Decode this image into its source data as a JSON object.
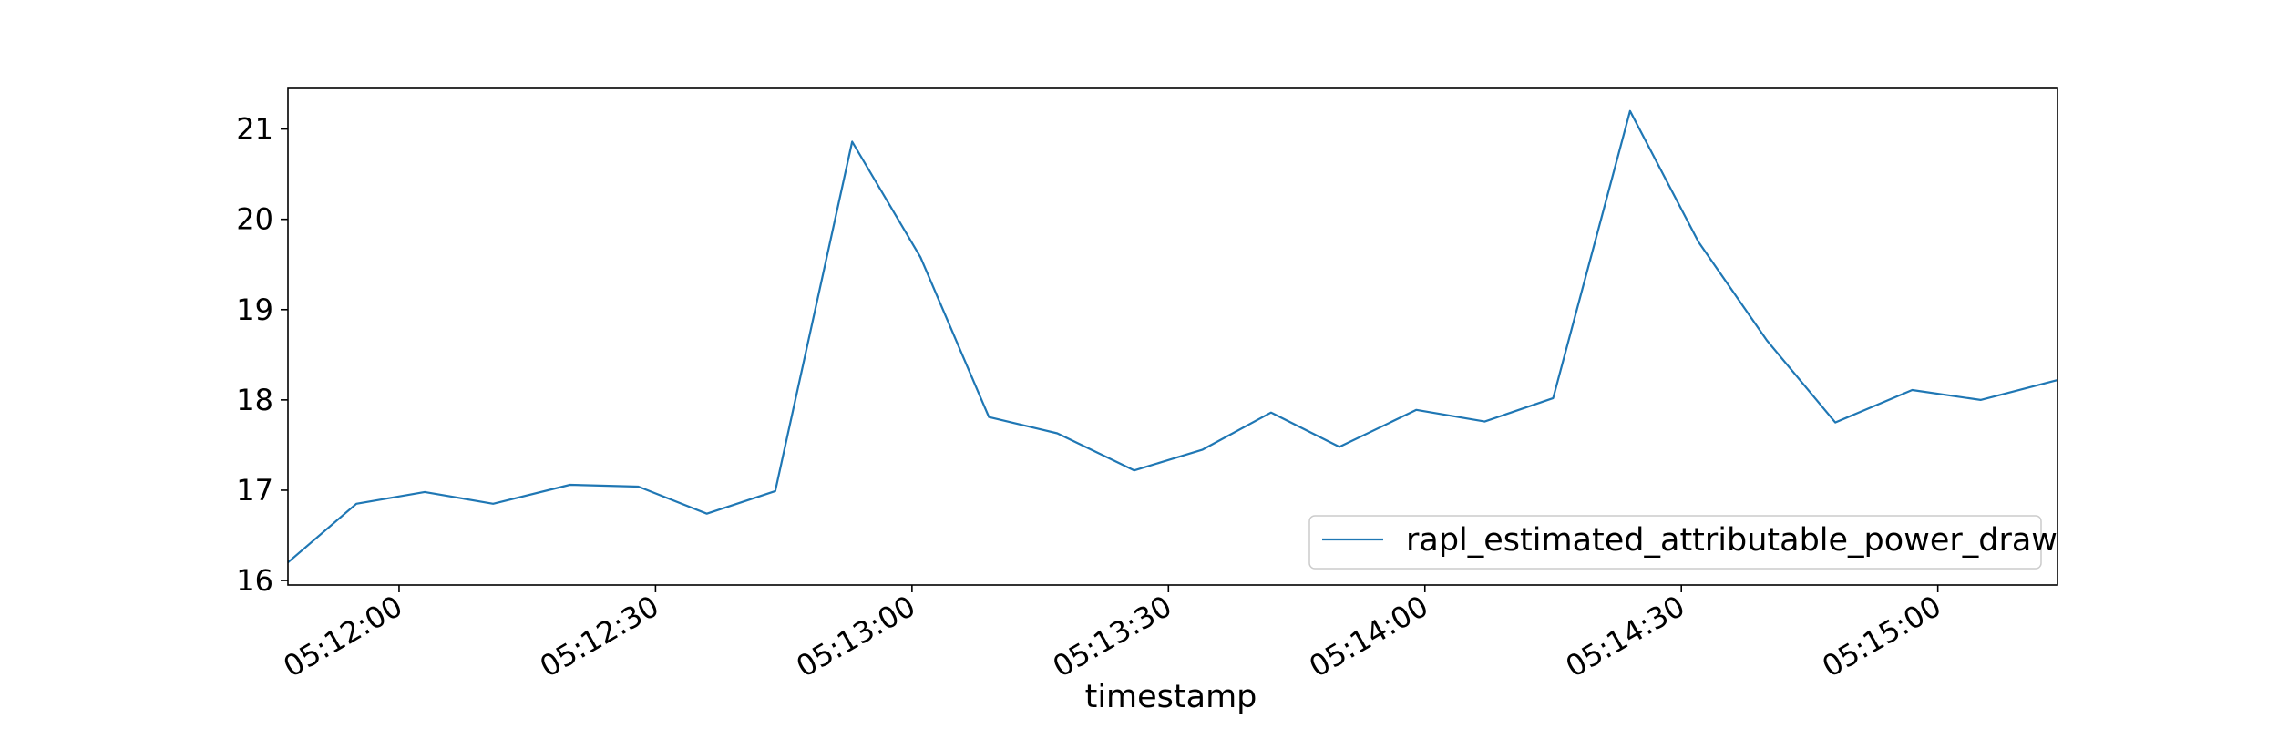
{
  "chart_data": {
    "type": "line",
    "xlabel": "timestamp",
    "ylabel": "",
    "x_ticks": [
      "05:12:00",
      "05:12:30",
      "05:13:00",
      "05:13:30",
      "05:14:00",
      "05:14:30",
      "05:15:00"
    ],
    "y_ticks": [
      "16",
      "17",
      "18",
      "19",
      "20",
      "21"
    ],
    "xlim": [
      "05:11:47",
      "05:15:14"
    ],
    "ylim": [
      15.95,
      21.45
    ],
    "grid": false,
    "legend_position": "lower-right",
    "series": [
      {
        "name": "rapl_estimated_attributable_power_draw",
        "color": "#1f77b4",
        "x": [
          "05:11:47",
          "05:11:55",
          "05:12:03",
          "05:12:11",
          "05:12:20",
          "05:12:28",
          "05:12:36",
          "05:12:44",
          "05:12:53",
          "05:13:01",
          "05:13:09",
          "05:13:17",
          "05:13:26",
          "05:13:34",
          "05:13:42",
          "05:13:50",
          "05:13:59",
          "05:14:07",
          "05:14:15",
          "05:14:24",
          "05:14:32",
          "05:14:40",
          "05:14:48",
          "05:14:57",
          "05:15:05",
          "05:15:14"
        ],
        "values": [
          16.2,
          16.85,
          16.98,
          16.85,
          17.06,
          17.04,
          16.74,
          16.99,
          20.86,
          19.58,
          17.81,
          17.63,
          17.22,
          17.45,
          17.86,
          17.48,
          17.89,
          17.76,
          18.02,
          21.2,
          19.75,
          18.66,
          17.75,
          18.11,
          18.0,
          18.22
        ]
      }
    ]
  }
}
